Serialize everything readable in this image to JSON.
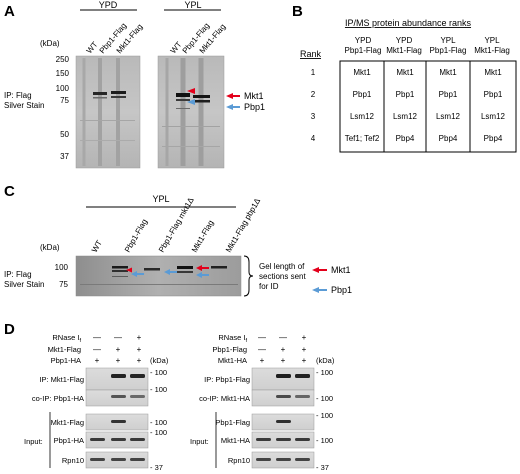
{
  "figure": {
    "panel_labels": [
      "A",
      "B",
      "C",
      "D"
    ],
    "panel_a": {
      "conditions": [
        "YPD",
        "YPL"
      ],
      "lanes": [
        "WT",
        "Pbp1-Flag",
        "Mkt1-Flag"
      ],
      "kda_label": "(kDa)",
      "markers": [
        "250",
        "150",
        "100",
        "75",
        "50",
        "37"
      ],
      "side_label": [
        "IP: Flag",
        "Silver Stain"
      ],
      "arrow_labels": [
        "Mkt1",
        "Pbp1"
      ]
    },
    "panel_b": {
      "title": "IP/MS protein abundance ranks",
      "rank_header": "Rank",
      "columns": [
        [
          "YPD",
          "Pbp1-Flag"
        ],
        [
          "YPD",
          "Mkt1-Flag"
        ],
        [
          "YPL",
          "Pbp1-Flag"
        ],
        [
          "YPL",
          "Mkt1-Flag"
        ]
      ],
      "rows": [
        {
          "rank": "1",
          "cells": [
            "Mkt1",
            "Mkt1",
            "Mkt1",
            "Mkt1"
          ]
        },
        {
          "rank": "2",
          "cells": [
            "Pbp1",
            "Pbp1",
            "Pbp1",
            "Pbp1"
          ]
        },
        {
          "rank": "3",
          "cells": [
            "Lsm12",
            "Lsm12",
            "Lsm12",
            "Lsm12"
          ]
        },
        {
          "rank": "4",
          "cells": [
            "Tef1; Tef2",
            "Pbp4",
            "Pbp4",
            "Pbp4"
          ]
        }
      ]
    },
    "panel_c": {
      "condition": "YPL",
      "lanes": [
        "WT",
        "Pbp1-Flag",
        "Pbp1-Flag mkt1Δ",
        "Mkt1-Flag",
        "Mkt1-Flag pbp1Δ"
      ],
      "kda_label": "(kDa)",
      "markers": [
        "100",
        "75"
      ],
      "side_label": [
        "IP: Flag",
        "Silver Stain"
      ],
      "bracket_label": [
        "Gel length of",
        "sections sent",
        "for ID"
      ],
      "arrow_labels": [
        "Mkt1",
        "Pbp1"
      ]
    },
    "panel_d_left": {
      "conditions": [
        {
          "label": "RNase I",
          "subscript": "f",
          "values": [
            "—",
            "—",
            "+"
          ]
        },
        {
          "label": "Mkt1-Flag",
          "values": [
            "—",
            "+",
            "+"
          ]
        },
        {
          "label": "Pbp1-HA",
          "values": [
            "+",
            "+",
            "+"
          ]
        }
      ],
      "kda_label": "(kDa)",
      "blots": [
        {
          "label": "IP: Mkt1-Flag",
          "marker": "- 100"
        },
        {
          "label": "co-IP: Pbp1-HA",
          "marker": "- 100"
        },
        {
          "label": "Mkt1-Flag",
          "marker": "- 100"
        },
        {
          "label": "Pbp1-HA",
          "marker": "- 100"
        },
        {
          "label": "Rpn10",
          "marker": "- 37"
        }
      ],
      "input_label": "Input:"
    },
    "panel_d_right": {
      "conditions": [
        {
          "label": "RNase I",
          "subscript": "f",
          "values": [
            "—",
            "—",
            "+"
          ]
        },
        {
          "label": "Pbp1-Flag",
          "values": [
            "—",
            "+",
            "+"
          ]
        },
        {
          "label": "Mkt1-HA",
          "values": [
            "+",
            "+",
            "+"
          ]
        }
      ],
      "kda_label": "(kDa)",
      "blots": [
        {
          "label": "IP: Pbp1-Flag",
          "marker": "- 100"
        },
        {
          "label": "co-IP: Mkt1-HA",
          "marker": "- 100"
        },
        {
          "label": "Pbp1-Flag",
          "marker": "- 100"
        },
        {
          "label": "Mkt1-HA",
          "marker": "- 100"
        },
        {
          "label": "Rpn10",
          "marker": "- 37"
        }
      ],
      "input_label": "Input:"
    },
    "colors": {
      "mkt1_arrow": "#e3001b",
      "pbp1_arrow": "#5b9bd5"
    }
  }
}
